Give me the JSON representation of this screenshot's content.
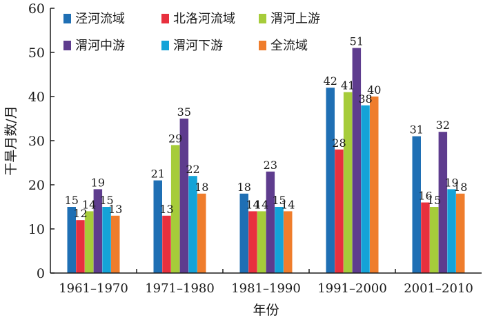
{
  "chart_data": {
    "type": "bar",
    "xlabel": "年份",
    "ylabel": "干旱月数/月",
    "ylim": [
      0,
      60
    ],
    "yticks": [
      0,
      10,
      20,
      30,
      40,
      50,
      60
    ],
    "categories": [
      "1961–1970",
      "1971–1980",
      "1981–1990",
      "1991–2000",
      "2001–2010"
    ],
    "series": [
      {
        "name": "泾河流域",
        "color": "#1f6fb4",
        "values": [
          15,
          21,
          18,
          42,
          31
        ]
      },
      {
        "name": "北洛河流域",
        "color": "#e8303e",
        "values": [
          12,
          13,
          14,
          28,
          16
        ]
      },
      {
        "name": "渭河上游",
        "color": "#a6cc3a",
        "values": [
          14,
          29,
          14,
          41,
          15
        ]
      },
      {
        "name": "渭河中游",
        "color": "#5e3c8e",
        "values": [
          19,
          35,
          23,
          51,
          32
        ]
      },
      {
        "name": "渭河下游",
        "color": "#14a3d8",
        "values": [
          15,
          22,
          15,
          38,
          19
        ]
      },
      {
        "name": "全流域",
        "color": "#ef7d2c",
        "values": [
          13,
          18,
          14,
          40,
          18
        ]
      }
    ],
    "data_labels": [
      [
        "15",
        "21",
        "18",
        "42",
        "31"
      ],
      [
        "12",
        "13",
        "14",
        "28",
        "16"
      ],
      [
        "14",
        "29",
        "14",
        "41",
        "15"
      ],
      [
        "19",
        "35",
        "23",
        "51",
        "32"
      ],
      [
        "15",
        "22",
        "15",
        "38",
        "19"
      ],
      [
        "13",
        "18",
        "14",
        "40",
        "18"
      ]
    ],
    "legend_position": "top-left, inside plot"
  }
}
